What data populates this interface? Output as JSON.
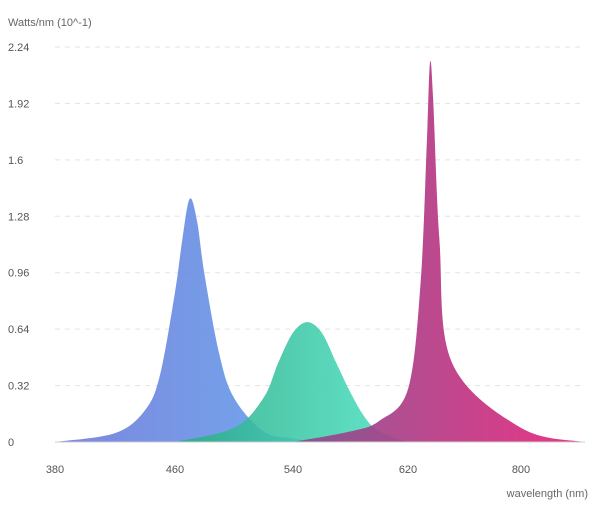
{
  "chart_data": {
    "type": "area",
    "title": "",
    "ylabel": "Watts/nm (10^-1)",
    "xlabel": "wavelength (nm)",
    "ylim": [
      0,
      2.24
    ],
    "y_ticks": [
      "0",
      "0.32",
      "0.64",
      "0.96",
      "1.28",
      "1.6",
      "1.92",
      "2.24"
    ],
    "x_ticks": [
      "380",
      "460",
      "540",
      "620",
      "800"
    ],
    "grid": "horizontal dashed",
    "legend": "none",
    "series": [
      {
        "color_start": "#6c74d8",
        "color_end": "#5aa4ee",
        "x": [
          "380",
          "420",
          "440",
          "450",
          "460",
          "465",
          "470",
          "475",
          "480",
          "490",
          "500",
          "520",
          "540",
          "560",
          "580"
        ],
        "values": [
          0.0,
          0.05,
          0.18,
          0.38,
          0.85,
          1.15,
          1.38,
          1.25,
          0.95,
          0.5,
          0.25,
          0.06,
          0.02,
          0.0,
          0.0
        ]
      },
      {
        "color_start": "#2aaa86",
        "color_end": "#4ee4c4",
        "x": [
          "460",
          "500",
          "520",
          "530",
          "540",
          "550",
          "560",
          "570",
          "580",
          "590",
          "600",
          "620"
        ],
        "values": [
          0.0,
          0.08,
          0.25,
          0.45,
          0.62,
          0.68,
          0.62,
          0.45,
          0.28,
          0.14,
          0.06,
          0.0
        ]
      },
      {
        "color_start": "#884e8f",
        "color_end": "#e8237a",
        "x": [
          "540",
          "580",
          "600",
          "620",
          "640",
          "650",
          "655",
          "660",
          "670",
          "690",
          "800",
          "900"
        ],
        "values": [
          0.0,
          0.06,
          0.12,
          0.3,
          0.9,
          1.7,
          2.15,
          1.95,
          1.15,
          0.45,
          0.08,
          0.0
        ]
      }
    ]
  }
}
